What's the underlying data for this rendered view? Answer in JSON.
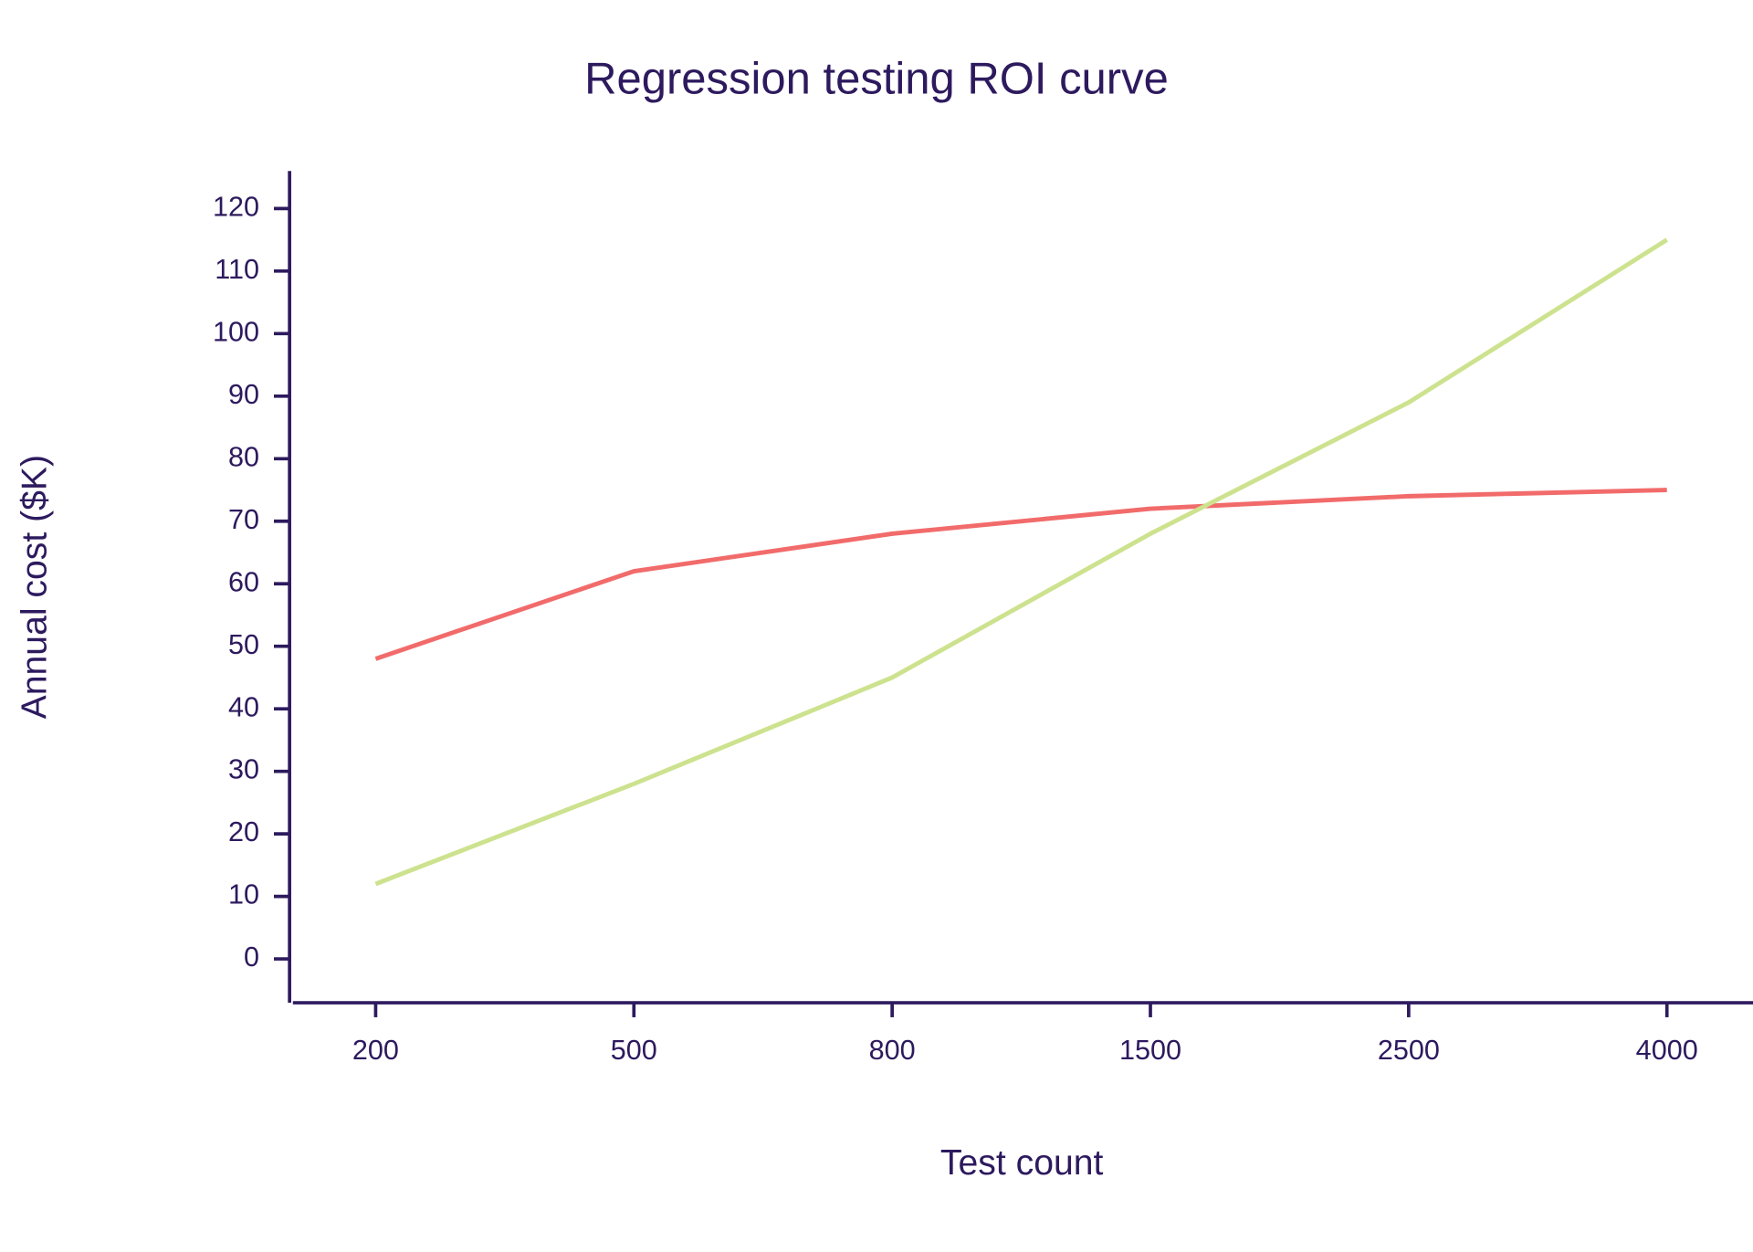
{
  "chart_data": {
    "type": "line",
    "title": "Regression testing ROI curve",
    "x_label": "Test count",
    "y_label": "Annual cost ($K)",
    "categories": [
      "200",
      "500",
      "800",
      "1500",
      "2500",
      "4000"
    ],
    "series": [
      {
        "color": "#f26b6b",
        "values": [
          48,
          62,
          68,
          72,
          74,
          75
        ]
      },
      {
        "color": "#cde28e",
        "values": [
          12,
          28,
          45,
          68,
          89,
          115
        ]
      }
    ],
    "ylim": [
      -7,
      126
    ],
    "yticks": [
      0,
      10,
      20,
      30,
      40,
      50,
      60,
      70,
      80,
      90,
      100,
      110,
      120
    ]
  }
}
